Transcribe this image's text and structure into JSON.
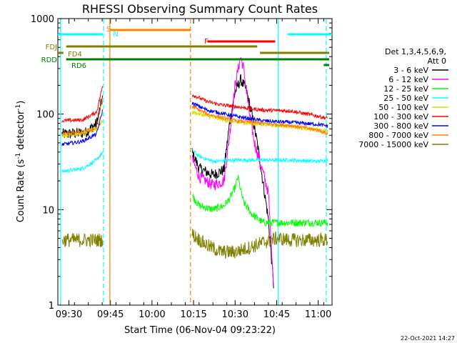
{
  "chart_data": {
    "type": "line",
    "title": "RHESSI Observing Summary Count Rates",
    "xlabel": "Start Time (06-Nov-04 09:23:22)",
    "ylabel_main": "Count Rate (s",
    "ylabel_sup1": "-1",
    "ylabel_mid": " detector",
    "ylabel_sup2": "-1",
    "ylabel_end": ")",
    "yscale": "log",
    "ylim": [
      1,
      1000
    ],
    "xlim_minutes": [
      -4,
      95
    ],
    "x_ticks": [
      {
        "m": 0,
        "label": "09:30"
      },
      {
        "m": 15,
        "label": "09:45"
      },
      {
        "m": 30,
        "label": "10:00"
      },
      {
        "m": 45,
        "label": "10:15"
      },
      {
        "m": 60,
        "label": "10:30"
      },
      {
        "m": 75,
        "label": "10:45"
      },
      {
        "m": 90,
        "label": "11:00"
      }
    ],
    "y_ticks": [
      {
        "v": 1,
        "label": "1"
      },
      {
        "v": 10,
        "label": "10"
      },
      {
        "v": 100,
        "label": "100"
      },
      {
        "v": 1000,
        "label": "1000"
      }
    ],
    "legend": {
      "header1": "Det 1,3,4,5,6,9,",
      "header2": "Att 0",
      "entries": [
        {
          "label": "3 - 6 keV",
          "color": "#000000"
        },
        {
          "label": "6 - 12 keV",
          "color": "#ff00ff"
        },
        {
          "label": "12 - 25 keV",
          "color": "#00ff00"
        },
        {
          "label": "25 - 50 keV",
          "color": "#00ffff"
        },
        {
          "label": "50 - 100 keV",
          "color": "#dddd00"
        },
        {
          "label": "100 - 300 keV",
          "color": "#ff0000"
        },
        {
          "label": "300 - 800 keV",
          "color": "#0000ff"
        },
        {
          "label": "800 - 7000 keV",
          "color": "#ff8000"
        },
        {
          "label": "7000 - 15000 keV",
          "color": "#808000"
        }
      ]
    },
    "flag_bars": [
      {
        "name": "N",
        "color": "#00ffff",
        "segments": [
          [
            -4,
            12.2
          ],
          [
            79,
            95
          ]
        ]
      },
      {
        "name": "S",
        "color": "#ff8000",
        "segments": [
          [
            15,
            44
          ]
        ]
      },
      {
        "name": "F",
        "color": "#ff0000",
        "segments": [
          [
            50,
            74.5
          ]
        ]
      },
      {
        "name": "FDJ",
        "color": "#808000",
        "segments": [
          [
            -1,
            68
          ]
        ]
      },
      {
        "name": "FD4",
        "color": "#808000",
        "segments": [
          [
            -4,
            -2
          ],
          [
            69,
            94
          ]
        ]
      },
      {
        "name": "RDD",
        "color": "#008000",
        "segments": [
          [
            -1,
            94
          ]
        ]
      },
      {
        "name": "RD6",
        "color": "#008000",
        "segments": [
          [
            92,
            94
          ]
        ]
      }
    ],
    "flag_labels": [
      {
        "text": "S",
        "color": "#ff8000"
      },
      {
        "text": "N",
        "color": "#00ffff"
      },
      {
        "text": "F",
        "color": "#ff0000"
      },
      {
        "text": "FDJ",
        "color": "#808000"
      },
      {
        "text": "FD4",
        "color": "#808000"
      },
      {
        "text": "RDD",
        "color": "#008000"
      },
      {
        "text": "RD6",
        "color": "#008000"
      }
    ],
    "vertical_lines": [
      {
        "m": -3.0,
        "color": "#00ffff",
        "dash": false
      },
      {
        "m": 12.5,
        "color": "#00ffff",
        "dash": true
      },
      {
        "m": 14.8,
        "color": "#ff8000",
        "dash": false
      },
      {
        "m": 43.9,
        "color": "#ff8000",
        "dash": true
      },
      {
        "m": 75.6,
        "color": "#00ffff",
        "dash": false
      },
      {
        "m": 92.9,
        "color": "#00ffff",
        "dash": true
      }
    ],
    "segments": [
      [
        -2.5,
        12.2
      ],
      [
        44.5,
        93.5
      ]
    ],
    "series": [
      {
        "name": "3 - 6 keV",
        "color": "#000000",
        "noise": 0.12,
        "pts": [
          [
            -2.5,
            62
          ],
          [
            0,
            62
          ],
          [
            6,
            64
          ],
          [
            10,
            80
          ],
          [
            12.2,
            150
          ],
          [
            44.5,
            40
          ],
          [
            47,
            27
          ],
          [
            52,
            23
          ],
          [
            56,
            26
          ],
          [
            58,
            80
          ],
          [
            60,
            170
          ],
          [
            62,
            230
          ],
          [
            64,
            180
          ],
          [
            66,
            100
          ],
          [
            68,
            50
          ],
          [
            70,
            20
          ],
          [
            72,
            8
          ],
          [
            74,
            1.5
          ]
        ]
      },
      {
        "name": "6 - 12 keV",
        "color": "#ff00ff",
        "noise": 0.12,
        "pts": [
          [
            44.5,
            34
          ],
          [
            47,
            22
          ],
          [
            52,
            18
          ],
          [
            56,
            20
          ],
          [
            58,
            60
          ],
          [
            60,
            200
          ],
          [
            62,
            400
          ],
          [
            63,
            310
          ],
          [
            65,
            110
          ],
          [
            67,
            50
          ],
          [
            70,
            25
          ],
          [
            72,
            15
          ],
          [
            74,
            1.5
          ]
        ]
      },
      {
        "name": "12 - 25 keV",
        "color": "#00ff00",
        "noise": 0.08,
        "pts": [
          [
            44.5,
            14
          ],
          [
            47,
            11
          ],
          [
            52,
            10
          ],
          [
            56,
            11
          ],
          [
            58,
            13
          ],
          [
            60,
            17
          ],
          [
            61,
            22
          ],
          [
            63,
            12
          ],
          [
            66,
            9
          ],
          [
            70,
            7.3
          ],
          [
            75,
            7.3
          ],
          [
            80,
            7.3
          ],
          [
            85,
            7.3
          ],
          [
            90,
            7.3
          ],
          [
            93.5,
            7.3
          ]
        ]
      },
      {
        "name": "25 - 50 keV",
        "color": "#00ffff",
        "noise": 0.04,
        "pts": [
          [
            -2.5,
            25
          ],
          [
            5,
            27
          ],
          [
            10,
            33
          ],
          [
            12.2,
            40
          ],
          [
            44.5,
            42
          ],
          [
            47,
            36
          ],
          [
            52,
            32
          ],
          [
            60,
            33
          ],
          [
            70,
            33
          ],
          [
            80,
            33
          ],
          [
            90,
            32
          ],
          [
            93.5,
            33
          ]
        ]
      },
      {
        "name": "50 - 100 keV",
        "color": "#dddd00",
        "noise": 0.04,
        "pts": [
          [
            -2.5,
            60
          ],
          [
            5,
            62
          ],
          [
            10,
            70
          ],
          [
            12.2,
            85
          ],
          [
            44.5,
            105
          ],
          [
            50,
            95
          ],
          [
            60,
            82
          ],
          [
            70,
            78
          ],
          [
            80,
            74
          ],
          [
            90,
            68
          ],
          [
            93.5,
            66
          ]
        ]
      },
      {
        "name": "100 - 300 keV",
        "color": "#ff0000",
        "noise": 0.04,
        "pts": [
          [
            -2.5,
            85
          ],
          [
            5,
            87
          ],
          [
            10,
            105
          ],
          [
            12.2,
            200
          ],
          [
            44.5,
            160
          ],
          [
            50,
            135
          ],
          [
            55,
            125
          ],
          [
            60,
            120
          ],
          [
            70,
            110
          ],
          [
            80,
            108
          ],
          [
            90,
            95
          ],
          [
            93.5,
            90
          ]
        ]
      },
      {
        "name": "300 - 800 keV",
        "color": "#0000ff",
        "noise": 0.04,
        "pts": [
          [
            -2.5,
            48
          ],
          [
            5,
            52
          ],
          [
            10,
            62
          ],
          [
            12.2,
            110
          ],
          [
            44.5,
            130
          ],
          [
            50,
            110
          ],
          [
            60,
            95
          ],
          [
            70,
            85
          ],
          [
            80,
            82
          ],
          [
            90,
            78
          ],
          [
            93.5,
            75
          ]
        ]
      },
      {
        "name": "800 - 7000 keV",
        "color": "#ff8000",
        "noise": 0.04,
        "pts": [
          [
            -2.5,
            62
          ],
          [
            5,
            65
          ],
          [
            10,
            72
          ],
          [
            12.2,
            150
          ],
          [
            44.5,
            120
          ],
          [
            50,
            100
          ],
          [
            60,
            85
          ],
          [
            70,
            80
          ],
          [
            80,
            76
          ],
          [
            90,
            68
          ],
          [
            93.5,
            62
          ]
        ]
      },
      {
        "name": "7000 - 15000 keV",
        "color": "#808000",
        "noise": 0.15,
        "pts": [
          [
            -2.5,
            4.8
          ],
          [
            5,
            4.8
          ],
          [
            10,
            4.8
          ],
          [
            12.2,
            4.8
          ],
          [
            44.5,
            5.5
          ],
          [
            50,
            4.2
          ],
          [
            55,
            3.6
          ],
          [
            60,
            3.6
          ],
          [
            65,
            4.0
          ],
          [
            70,
            4.5
          ],
          [
            75,
            5.0
          ],
          [
            80,
            4.8
          ],
          [
            90,
            4.8
          ],
          [
            93.5,
            4.8
          ]
        ]
      }
    ]
  },
  "footer": {
    "date": "22-Oct-2021 14:27"
  }
}
